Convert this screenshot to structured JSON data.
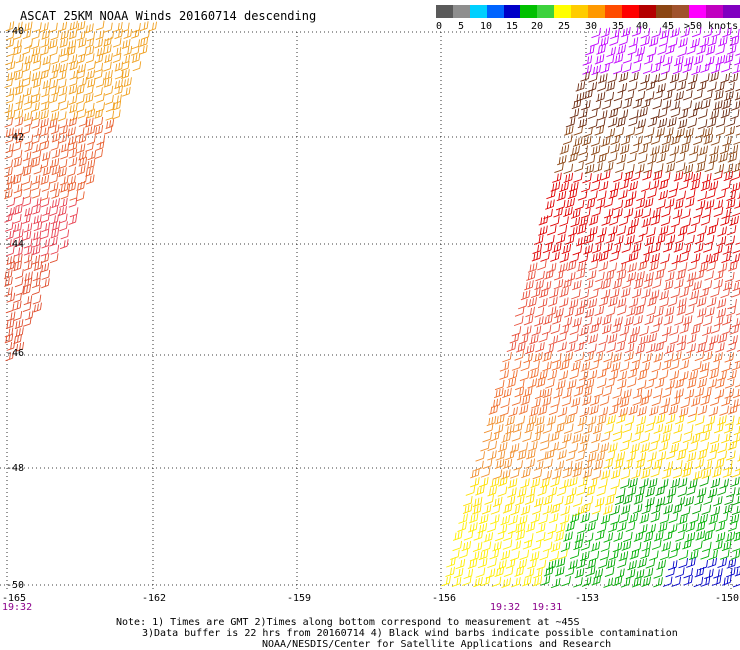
{
  "title": "ASCAT 25KM NOAA Winds 20160714 descending",
  "legend": {
    "colors": [
      "#5a5a5a",
      "#8e8e8e",
      "#00d0ff",
      "#0064ff",
      "#0000c8",
      "#00c000",
      "#3cd23c",
      "#ffff00",
      "#ffcc00",
      "#ff9900",
      "#ff4b00",
      "#ff0000",
      "#b40000",
      "#8b4513",
      "#a0522d",
      "#ff00ff",
      "#c000c0",
      "#8000c0"
    ],
    "labels": [
      "0",
      "5",
      "10",
      "15",
      "20",
      "25",
      "30",
      "35",
      "40",
      "45",
      ">50 knots"
    ]
  },
  "axes": {
    "lat_labels": [
      "-40",
      "-42",
      "-44",
      "-46",
      "-48",
      "-50"
    ],
    "lon_labels": [
      "-165",
      "-162",
      "-159",
      "-156",
      "-153",
      "-150"
    ]
  },
  "times": {
    "left": "19:32",
    "mid1": "19:32",
    "mid2": "19:31"
  },
  "notes": {
    "line1": "Note: 1) Times are GMT 2)Times along bottom correspond to measurement at ~45S",
    "line2": "3)Data buffer is 22 hrs from 20160714 4) Black wind barbs indicate possible contamination",
    "line3": "NOAA/NESDIS/Center for Satellite Applications and Research"
  }
}
